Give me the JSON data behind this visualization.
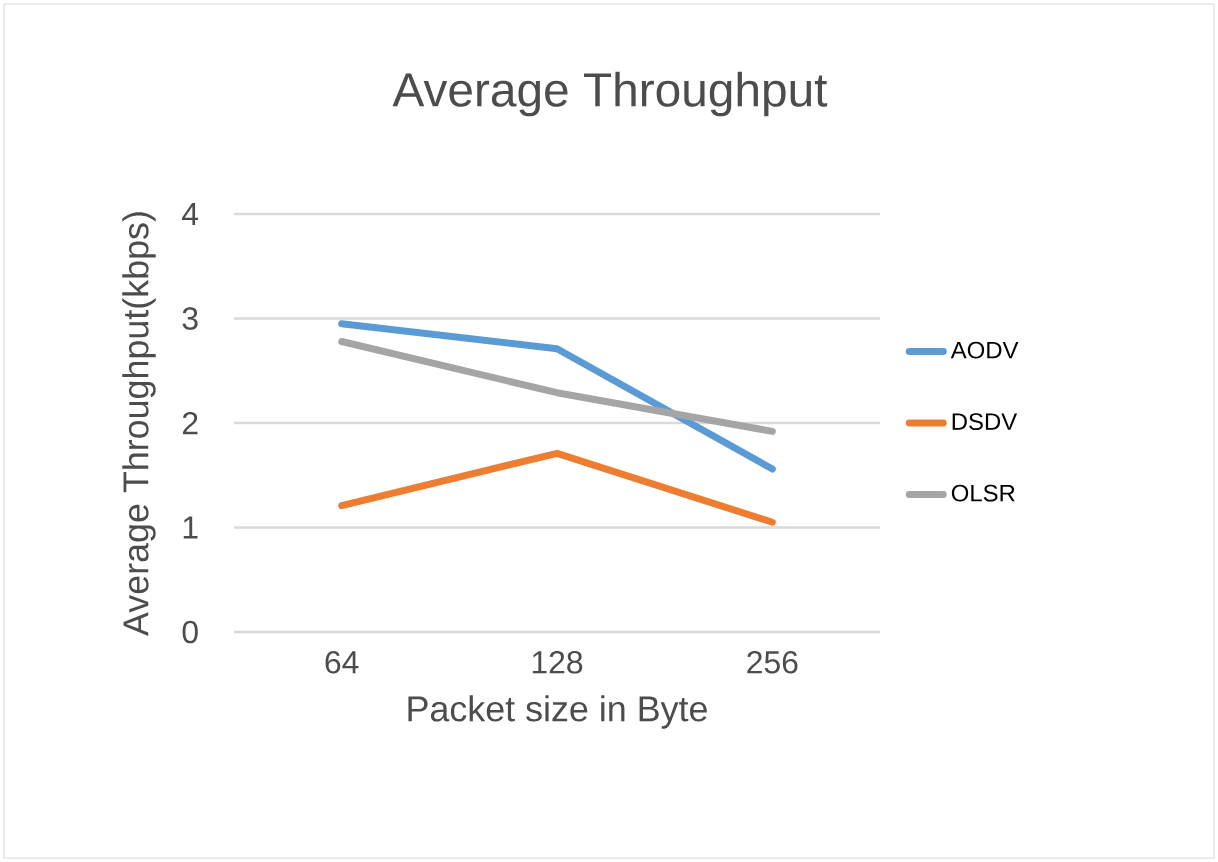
{
  "chart_data": {
    "type": "line",
    "title": "Average Throughput",
    "xlabel": "Packet size in Byte",
    "ylabel": "Average Throughput(kbps)",
    "categories": [
      "64",
      "128",
      "256"
    ],
    "series": [
      {
        "name": "AODV",
        "color": "#5b9bd5",
        "values": [
          2.95,
          2.71,
          1.56
        ]
      },
      {
        "name": "DSDV",
        "color": "#ed7d31",
        "values": [
          1.21,
          1.71,
          1.05
        ]
      },
      {
        "name": "OLSR",
        "color": "#a5a5a5",
        "values": [
          2.78,
          2.29,
          1.92
        ]
      }
    ],
    "ylim": [
      0,
      4
    ],
    "yticks": [
      0,
      1,
      2,
      3,
      4
    ],
    "grid": "y",
    "legend": "right"
  }
}
